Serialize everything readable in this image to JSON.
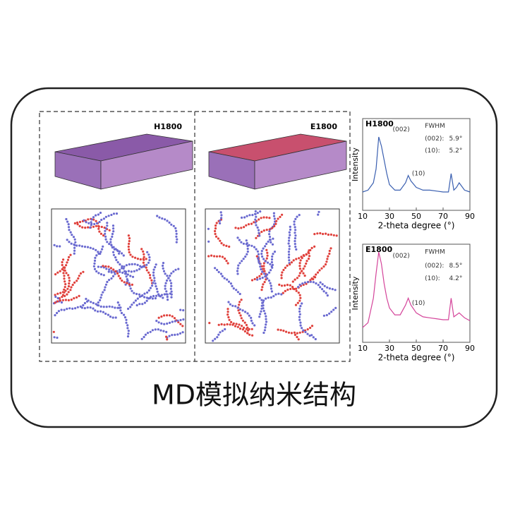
{
  "caption": "MD模拟纳米结构",
  "panels": [
    {
      "label": "H1800"
    },
    {
      "label": "E1800"
    }
  ],
  "chart_data": [
    {
      "type": "line",
      "title": "H1800",
      "x_label": "2-theta degree (°)",
      "y_label": "Intensity",
      "x": [
        10,
        14,
        18,
        20,
        22,
        24,
        26,
        28,
        30,
        34,
        38,
        42,
        44,
        46,
        50,
        55,
        60,
        65,
        70,
        74,
        76,
        78,
        80,
        82,
        86,
        90
      ],
      "series": [
        {
          "color": "#3a5fb0",
          "values": [
            20,
            22,
            30,
            45,
            80,
            70,
            55,
            40,
            28,
            22,
            22,
            30,
            38,
            32,
            25,
            22,
            22,
            21,
            20,
            20,
            40,
            22,
            25,
            30,
            22,
            20
          ]
        }
      ],
      "xlim": [
        10,
        90
      ],
      "xticks": [
        10,
        30,
        50,
        70,
        90
      ],
      "ylim": [
        0,
        100
      ],
      "annotations": [
        "(002)",
        "FWHM",
        "(002):",
        "5.9°",
        "(10):",
        "5.2°",
        "(10)"
      ]
    },
    {
      "type": "line",
      "title": "E1800",
      "x_label": "2-theta degree (°)",
      "y_label": "Intensity",
      "x": [
        10,
        14,
        18,
        20,
        22,
        24,
        26,
        28,
        30,
        34,
        38,
        42,
        44,
        46,
        50,
        55,
        60,
        65,
        70,
        74,
        76,
        78,
        80,
        82,
        86,
        90
      ],
      "series": [
        {
          "color": "#d4449a",
          "values": [
            15,
            20,
            45,
            70,
            92,
            80,
            60,
            45,
            35,
            28,
            28,
            38,
            45,
            38,
            30,
            26,
            25,
            24,
            23,
            23,
            45,
            26,
            28,
            30,
            25,
            22
          ]
        }
      ],
      "xlim": [
        10,
        90
      ],
      "xticks": [
        10,
        30,
        50,
        70,
        90
      ],
      "ylim": [
        0,
        100
      ],
      "annotations": [
        "(002)",
        "FWHM",
        "(002):",
        "8.5°",
        "(10):",
        "4.2°",
        "(10)"
      ]
    }
  ]
}
